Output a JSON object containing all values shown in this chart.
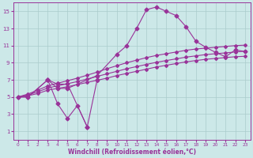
{
  "color": "#993399",
  "bg_color": "#cce8e8",
  "grid_color": "#aacccc",
  "xlabel": "Windchill (Refroidissement éolien,°C)",
  "ylim": [
    0,
    16
  ],
  "xlim": [
    -0.5,
    23.5
  ],
  "yticks": [
    1,
    3,
    5,
    7,
    9,
    11,
    13,
    15
  ],
  "xticks": [
    0,
    1,
    2,
    3,
    4,
    5,
    6,
    7,
    8,
    9,
    10,
    11,
    12,
    13,
    14,
    15,
    16,
    17,
    18,
    19,
    20,
    21,
    22,
    23
  ],
  "line_peak_x": [
    0,
    1,
    3,
    4,
    5,
    8,
    10,
    11,
    12,
    13,
    14,
    15,
    16,
    17,
    18,
    19,
    20,
    21,
    22,
    23
  ],
  "line_peak_y": [
    5,
    5,
    7,
    6,
    6,
    7.5,
    10,
    11,
    13,
    15.2,
    15.5,
    15.0,
    14.5,
    13.2,
    11.5,
    10.8,
    10.2,
    9.7,
    10.5,
    10.3
  ],
  "line_dip_x": [
    0,
    1,
    3,
    4,
    5,
    7,
    8
  ],
  "line_dip_y": [
    5,
    5,
    7,
    6.5,
    6.5,
    1.5,
    7.0
  ],
  "line_low_x": [
    3,
    4,
    5,
    6,
    7
  ],
  "line_low_y": [
    7,
    4.2,
    2.5,
    4.0,
    1.5
  ],
  "flat1_x": [
    0,
    1,
    2,
    3,
    4,
    5,
    6,
    7,
    8,
    9,
    10,
    11,
    12,
    13,
    14,
    15,
    16,
    17,
    18,
    19,
    20,
    21,
    22,
    23
  ],
  "flat1_y": [
    5.0,
    5.15,
    5.4,
    5.8,
    6.0,
    6.2,
    6.45,
    6.7,
    6.95,
    7.2,
    7.5,
    7.75,
    8.0,
    8.25,
    8.5,
    8.7,
    8.9,
    9.1,
    9.25,
    9.4,
    9.5,
    9.6,
    9.7,
    9.75
  ],
  "flat2_x": [
    0,
    1,
    2,
    3,
    4,
    5,
    6,
    7,
    8,
    9,
    10,
    11,
    12,
    13,
    14,
    15,
    16,
    17,
    18,
    19,
    20,
    21,
    22,
    23
  ],
  "flat2_y": [
    5.0,
    5.25,
    5.6,
    6.05,
    6.3,
    6.55,
    6.8,
    7.1,
    7.4,
    7.7,
    8.0,
    8.3,
    8.55,
    8.8,
    9.05,
    9.25,
    9.45,
    9.65,
    9.8,
    9.95,
    10.05,
    10.15,
    10.25,
    10.35
  ],
  "flat3_x": [
    0,
    1,
    2,
    3,
    4,
    5,
    6,
    7,
    8,
    9,
    10,
    11,
    12,
    13,
    14,
    15,
    16,
    17,
    18,
    19,
    20,
    21,
    22,
    23
  ],
  "flat3_y": [
    5.0,
    5.35,
    5.8,
    6.3,
    6.6,
    6.9,
    7.2,
    7.55,
    7.9,
    8.3,
    8.65,
    9.0,
    9.3,
    9.6,
    9.85,
    10.05,
    10.25,
    10.45,
    10.6,
    10.7,
    10.8,
    10.9,
    11.0,
    11.05
  ]
}
